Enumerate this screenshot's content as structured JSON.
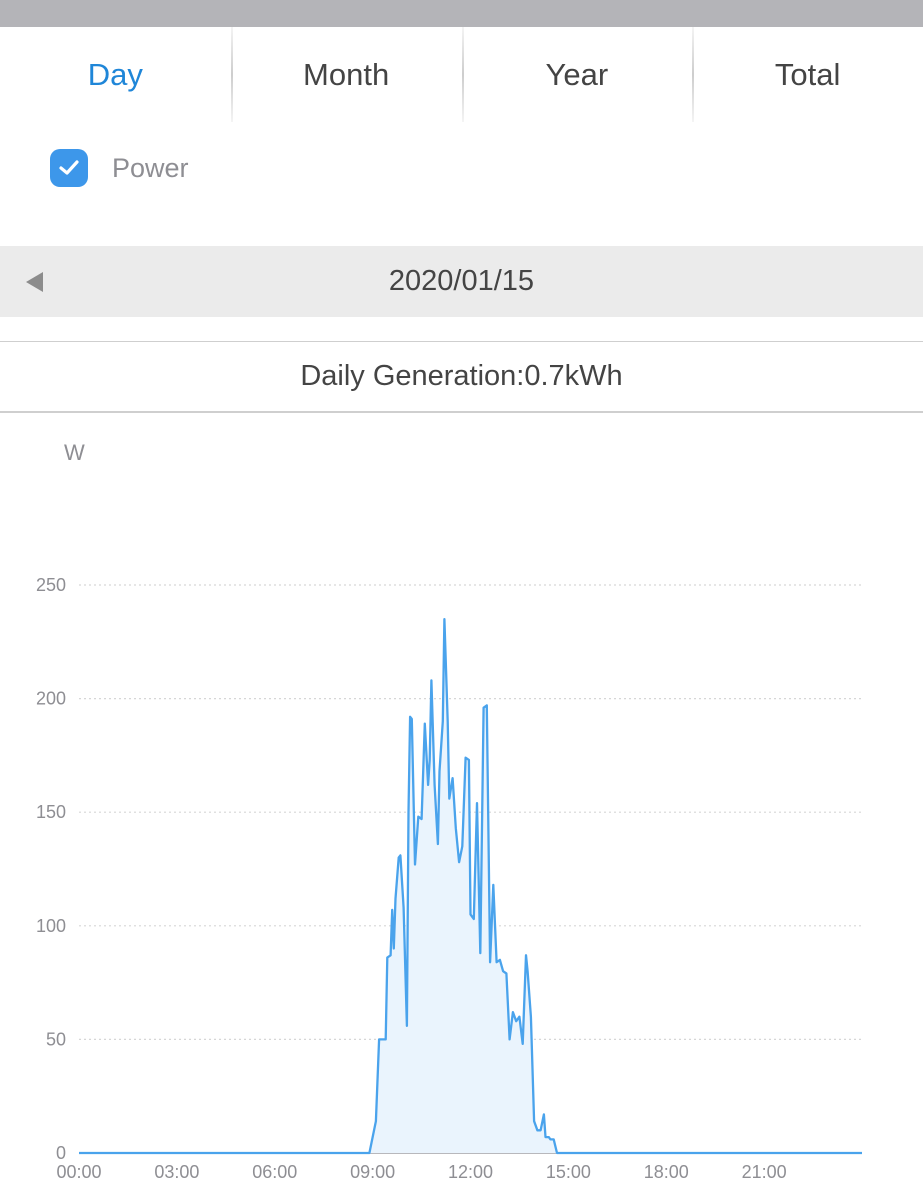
{
  "tabs": [
    "Day",
    "Month",
    "Year",
    "Total"
  ],
  "active_tab": 0,
  "legend": {
    "label": "Power",
    "checked": true,
    "color": "#3d97ea"
  },
  "date": "2020/01/15",
  "daily_generation": "Daily Generation:0.7kWh",
  "colors": {
    "accent": "#1f86d8",
    "line": "#4aa3ec",
    "fill": "#eaf4fd",
    "grid": "#d6d6d6"
  },
  "chart_data": {
    "type": "area",
    "ylabel": "W",
    "xlabel": "",
    "ylim": [
      0,
      250
    ],
    "yticks": [
      0,
      50,
      100,
      150,
      200,
      250
    ],
    "xticks": [
      "00:00",
      "03:00",
      "06:00",
      "09:00",
      "12:00",
      "15:00",
      "18:00",
      "21:00"
    ],
    "x_unit": "hours",
    "xlim": [
      0,
      24
    ],
    "grid": true,
    "series": [
      {
        "name": "Power",
        "x": [
          0,
          8.2,
          8.9,
          9.1,
          9.2,
          9.4,
          9.45,
          9.55,
          9.6,
          9.65,
          9.7,
          9.8,
          9.85,
          9.95,
          10.05,
          10.1,
          10.15,
          10.2,
          10.3,
          10.4,
          10.5,
          10.6,
          10.7,
          10.75,
          10.8,
          10.9,
          11.0,
          11.05,
          11.15,
          11.2,
          11.3,
          11.35,
          11.45,
          11.55,
          11.65,
          11.75,
          11.85,
          11.95,
          12.0,
          12.1,
          12.2,
          12.3,
          12.4,
          12.5,
          12.6,
          12.7,
          12.8,
          12.9,
          13.0,
          13.1,
          13.2,
          13.3,
          13.4,
          13.5,
          13.6,
          13.7,
          13.75,
          13.85,
          13.95,
          14.05,
          14.15,
          14.25,
          14.3,
          14.4,
          14.45,
          14.55,
          14.65,
          14.7,
          14.8,
          14.9,
          14.95,
          15.05,
          15.1,
          15.2,
          15.3,
          15.35,
          15.45,
          15.55,
          15.6,
          15.7,
          15.75,
          15.85,
          16.0,
          16.9,
          24
        ],
        "values": [
          0,
          0,
          0,
          14,
          50,
          50,
          86,
          87,
          107,
          90,
          112,
          130,
          131,
          108,
          56,
          150,
          192,
          191,
          127,
          148,
          147,
          189,
          162,
          173,
          208,
          162,
          136,
          168,
          190,
          235,
          190,
          156,
          165,
          143,
          128,
          135,
          174,
          173,
          105,
          103,
          154,
          88,
          196,
          197,
          84,
          118,
          84,
          85,
          80,
          79,
          50,
          62,
          58,
          60,
          48,
          87,
          80,
          60,
          14,
          10,
          10,
          17,
          7,
          7,
          6,
          6,
          0,
          0,
          0,
          0,
          0,
          0,
          0,
          0,
          0,
          0,
          0,
          0,
          0,
          0,
          0,
          0,
          0,
          0,
          0
        ]
      }
    ]
  }
}
